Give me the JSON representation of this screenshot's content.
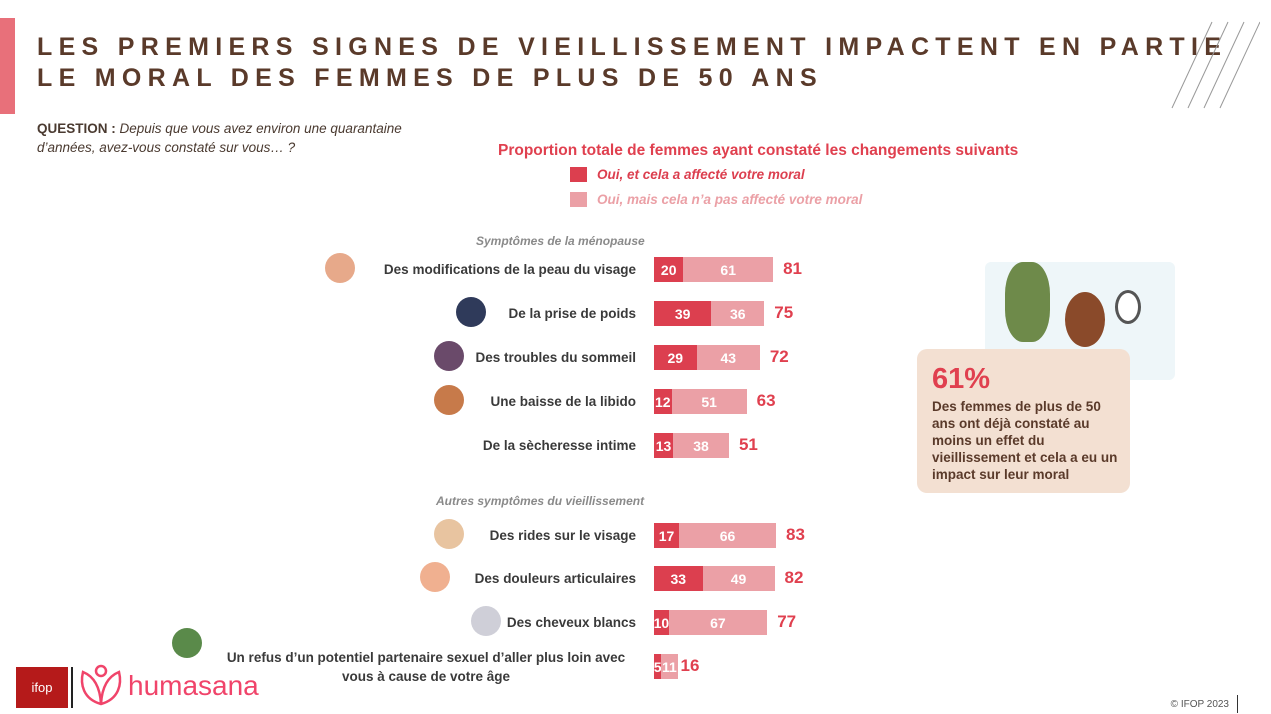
{
  "header": {
    "title_line1": "LES PREMIERS SIGNES DE VIEILLISSEMENT IMPACTENT EN PARTIE",
    "title_line2": "LE MORAL DES FEMMES DE PLUS DE 50 ANS"
  },
  "question": {
    "label": "QUESTION :",
    "text": "Depuis que vous avez environ une quarantaine d’années, avez-vous constaté sur vous… ?"
  },
  "colors": {
    "affected": "#dc3f4f",
    "not_affected": "#eba0a6",
    "total": "#e0404f",
    "accent": "#e8707a"
  },
  "chart_data": {
    "type": "bar",
    "orientation": "horizontal-stacked",
    "title": "Proportion totale de femmes ayant constaté les changements suivants",
    "legend": [
      "Oui, et cela a affecté votre moral",
      "Oui, mais cela n’a pas affecté votre moral"
    ],
    "sections": [
      {
        "name": "Symptômes de la ménopause",
        "rows": [
          {
            "label": "Des modifications de la peau du visage",
            "icon": "woman-face-icon",
            "affected": 20,
            "not_affected": 61,
            "total": 81
          },
          {
            "label": "De la prise de poids",
            "icon": "scale-icon",
            "affected": 39,
            "not_affected": 36,
            "total": 75
          },
          {
            "label": "Des troubles du sommeil",
            "icon": "sleep-icon",
            "affected": 29,
            "not_affected": 43,
            "total": 72
          },
          {
            "label": "Une baisse de la libido",
            "icon": "couple-icon",
            "affected": 12,
            "not_affected": 51,
            "total": 63
          },
          {
            "label": "De la sècheresse intime",
            "icon": "",
            "affected": 13,
            "not_affected": 38,
            "total": 51
          }
        ]
      },
      {
        "name": "Autres symptômes du vieillissement",
        "rows": [
          {
            "label": "Des rides sur le visage",
            "icon": "aging-face-icon",
            "affected": 17,
            "not_affected": 66,
            "total": 83
          },
          {
            "label": "Des douleurs articulaires",
            "icon": "knee-pain-icon",
            "affected": 33,
            "not_affected": 49,
            "total": 82
          },
          {
            "label": "Des cheveux blancs",
            "icon": "white-hair-icon",
            "affected": 10,
            "not_affected": 67,
            "total": 77
          },
          {
            "label": "Un refus d’un potentiel partenaire sexuel d’aller plus loin avec vous à cause de votre âge",
            "icon": "man-icon",
            "affected": 5,
            "not_affected": 11,
            "total": 16
          }
        ]
      }
    ]
  },
  "callout": {
    "percent": "61%",
    "text": "Des femmes de plus de 50 ans ont déjà constaté au moins un effet du vieillissement et cela a eu un impact sur leur moral"
  },
  "footer": {
    "copyright": "© IFOP 2023",
    "ifop_logo": "ifop",
    "humasana_logo": "humasana"
  }
}
